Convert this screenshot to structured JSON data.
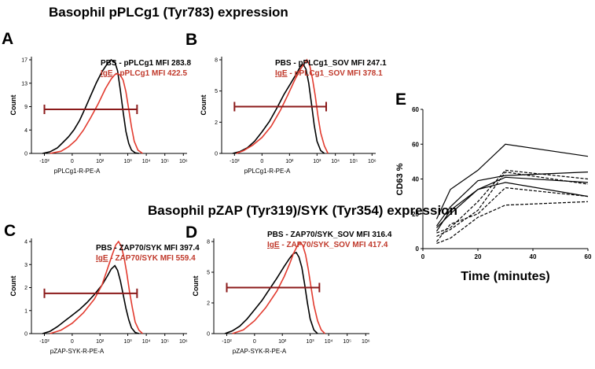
{
  "figure": {
    "section1_title": "Basophil pPLCg1 (Tyr783) expression",
    "section2_title": "Basophil pZAP (Tyr319)/SYK (Tyr354) expression"
  },
  "chart_data": [
    {
      "id": "A",
      "type": "histogram",
      "panel_letter": "A",
      "xlabel": "pPLCg1-R-PE-A",
      "ylabel": "Count",
      "y_ticks": [
        "0",
        "4",
        "9",
        "13",
        "17"
      ],
      "ylim": [
        0,
        17
      ],
      "x_ticks": [
        "-10²",
        "0",
        "10²",
        "10³",
        "10⁴",
        "10⁵",
        "10⁶"
      ],
      "legend": [
        {
          "prefix": "PBS",
          "rest": " - pPLCg1 MFI 283.8",
          "color": "#000000"
        },
        {
          "prefix": "IgE",
          "rest": " - pPLCg1 MFI 422.5",
          "color": "#e23b2f"
        }
      ],
      "series": [
        {
          "name": "PBS",
          "color": "#000000",
          "x": [
            -1.6,
            -1.2,
            -0.8,
            -0.5,
            -0.2,
            0.1,
            0.4,
            0.7,
            1.0,
            1.3,
            1.6,
            1.9,
            2.1,
            2.3,
            2.45,
            2.6,
            2.75,
            2.9,
            3.05,
            3.2,
            3.4,
            3.6
          ],
          "y": [
            0,
            0.3,
            1.0,
            2.0,
            3.0,
            4.3,
            6.0,
            8.2,
            10.5,
            12.8,
            14.8,
            16.3,
            17,
            16.6,
            15.0,
            11.5,
            7.5,
            4.0,
            1.8,
            0.6,
            0.1,
            0
          ]
        },
        {
          "name": "IgE",
          "color": "#e23b2f",
          "x": [
            -1.2,
            -0.6,
            -0.2,
            0.2,
            0.6,
            1.0,
            1.4,
            1.8,
            2.1,
            2.3,
            2.45,
            2.6,
            2.75,
            2.9,
            3.05,
            3.2,
            3.35,
            3.55,
            3.8
          ],
          "y": [
            0,
            0.4,
            1.2,
            2.4,
            4.2,
            6.5,
            9.0,
            11.8,
            13.5,
            14.3,
            14.5,
            14.2,
            13.3,
            11.2,
            8.0,
            4.8,
            2.2,
            0.6,
            0
          ]
        }
      ],
      "gate": {
        "from": -1.5,
        "to": 3.5,
        "y": 8
      }
    },
    {
      "id": "B",
      "type": "histogram",
      "panel_letter": "B",
      "xlabel": "pPLCg1-R-PE-A",
      "ylabel": "Count",
      "y_ticks": [
        "0",
        "2",
        "5",
        "8"
      ],
      "ylim": [
        0,
        10
      ],
      "x_ticks": [
        "-10²",
        "0",
        "10²",
        "10³",
        "10⁴",
        "10⁵",
        "10⁶"
      ],
      "legend": [
        {
          "prefix": "PBS",
          "rest": " - pPLCg1_SOV MFI 247.1",
          "color": "#000000"
        },
        {
          "prefix": "IgE",
          "rest": " - pPLCg1_SOV MFI 378.1",
          "color": "#e23b2f"
        }
      ],
      "series": [
        {
          "name": "PBS",
          "color": "#000000",
          "x": [
            -1.6,
            -1.2,
            -0.8,
            -0.4,
            0,
            0.4,
            0.8,
            1.2,
            1.6,
            1.9,
            2.1,
            2.25,
            2.4,
            2.55,
            2.7,
            2.85,
            3.0,
            3.2,
            3.4
          ],
          "y": [
            0,
            0.2,
            0.6,
            1.3,
            2.3,
            3.4,
            4.8,
            6.3,
            7.6,
            8.6,
            9.3,
            9.5,
            9.0,
            7.5,
            5.3,
            3.0,
            1.3,
            0.3,
            0
          ]
        },
        {
          "name": "IgE",
          "color": "#e23b2f",
          "x": [
            -1.4,
            -1.0,
            -0.5,
            0,
            0.5,
            1.0,
            1.4,
            1.8,
            2.1,
            2.3,
            2.45,
            2.6,
            2.75,
            2.9,
            3.05,
            3.2,
            3.4,
            3.6
          ],
          "y": [
            0,
            0.3,
            0.9,
            1.7,
            2.9,
            4.6,
            6.2,
            7.9,
            9.0,
            9.6,
            10.0,
            9.4,
            8.0,
            6.2,
            4.0,
            2.2,
            0.8,
            0
          ]
        }
      ],
      "gate": {
        "from": -1.5,
        "to": 3.5,
        "y": 5
      }
    },
    {
      "id": "C",
      "type": "histogram",
      "panel_letter": "C",
      "xlabel": "pZAP-SYK-R-PE-A",
      "ylabel": "Count",
      "y_ticks": [
        "0",
        "1",
        "2",
        "3",
        "4"
      ],
      "ylim": [
        0,
        4
      ],
      "x_ticks": [
        "-10²",
        "0",
        "10²",
        "10³",
        "10⁴",
        "10⁵",
        "10⁶"
      ],
      "legend": [
        {
          "prefix": "PBS",
          "rest": " - ZAP70/SYK MFI 397.4",
          "color": "#000000"
        },
        {
          "prefix": "IgE",
          "rest": " - ZAP70/SYK MFI 559.4",
          "color": "#e23b2f"
        }
      ],
      "series": [
        {
          "name": "PBS",
          "color": "#000000",
          "x": [
            -1.6,
            -1.2,
            -0.8,
            -0.4,
            0,
            0.4,
            0.8,
            1.2,
            1.6,
            1.9,
            2.1,
            2.3,
            2.45,
            2.6,
            2.75,
            2.9,
            3.05,
            3.2,
            3.4,
            3.6
          ],
          "y": [
            0,
            0.1,
            0.3,
            0.55,
            0.8,
            1.05,
            1.35,
            1.7,
            2.1,
            2.5,
            2.8,
            2.95,
            2.75,
            2.3,
            1.7,
            1.1,
            0.6,
            0.25,
            0.05,
            0
          ]
        },
        {
          "name": "IgE",
          "color": "#e23b2f",
          "x": [
            -1.2,
            -0.6,
            0,
            0.6,
            1.2,
            1.6,
            1.9,
            2.15,
            2.35,
            2.5,
            2.65,
            2.8,
            2.95,
            3.1,
            3.25,
            3.4,
            3.6,
            3.8
          ],
          "y": [
            0,
            0.15,
            0.45,
            0.9,
            1.5,
            2.1,
            2.8,
            3.4,
            3.85,
            4.0,
            3.8,
            3.3,
            2.6,
            1.8,
            1.1,
            0.5,
            0.15,
            0
          ]
        }
      ],
      "gate": {
        "from": -1.5,
        "to": 3.5,
        "y": 1.75
      }
    },
    {
      "id": "D",
      "type": "histogram",
      "panel_letter": "D",
      "xlabel": "pZAP-SYK-R-PE-A",
      "ylabel": "Count",
      "y_ticks": [
        "0",
        "2",
        "5",
        "8"
      ],
      "ylim": [
        0,
        10
      ],
      "x_ticks": [
        "-10²",
        "0",
        "10²",
        "10³",
        "10⁴",
        "10⁵",
        "10⁶"
      ],
      "legend": [
        {
          "prefix": "PBS",
          "rest": " - ZAP70/SYK_SOV MFI 316.4",
          "color": "#000000"
        },
        {
          "prefix": "IgE",
          "rest": " - ZAP70/SYK_SOV MFI 417.4",
          "color": "#e23b2f"
        }
      ],
      "series": [
        {
          "name": "PBS",
          "color": "#000000",
          "x": [
            -1.6,
            -1.2,
            -0.8,
            -0.4,
            0,
            0.4,
            0.8,
            1.2,
            1.6,
            1.9,
            2.1,
            2.25,
            2.4,
            2.55,
            2.7,
            2.85,
            3.0,
            3.2,
            3.4
          ],
          "y": [
            0,
            0.3,
            0.8,
            1.6,
            2.6,
            3.6,
            4.8,
            6.0,
            7.3,
            8.2,
            8.7,
            8.8,
            8.3,
            7.2,
            5.4,
            3.4,
            1.6,
            0.4,
            0
          ]
        },
        {
          "name": "IgE",
          "color": "#e23b2f",
          "x": [
            -1.2,
            -0.6,
            0,
            0.6,
            1.2,
            1.6,
            1.9,
            2.1,
            2.3,
            2.45,
            2.6,
            2.75,
            2.9,
            3.05,
            3.2,
            3.4,
            3.6,
            3.8
          ],
          "y": [
            0,
            0.4,
            1.4,
            2.8,
            4.6,
            6.2,
            7.6,
            8.7,
            9.5,
            9.9,
            9.6,
            8.6,
            7.0,
            5.0,
            3.1,
            1.4,
            0.4,
            0
          ]
        }
      ],
      "gate": {
        "from": -1.5,
        "to": 3.5,
        "y": 5
      }
    },
    {
      "id": "E",
      "type": "line",
      "panel_letter": "E",
      "xlabel": "Time (minutes)",
      "ylabel": "CD63 %",
      "x_ticks": [
        0,
        20,
        40,
        60
      ],
      "y_ticks": [
        0,
        20,
        40,
        60
      ],
      "y_top_label": "60",
      "xlim": [
        0,
        60
      ],
      "ylim": [
        0,
        80
      ],
      "x": [
        5,
        10,
        20,
        30,
        60
      ],
      "series": [
        {
          "name": "solid-1",
          "style": "solid",
          "values": [
            17,
            34,
            45,
            60,
            53
          ]
        },
        {
          "name": "solid-2",
          "style": "solid",
          "values": [
            13,
            24,
            39,
            42,
            44
          ]
        },
        {
          "name": "solid-3",
          "style": "solid",
          "values": [
            12,
            20,
            34,
            41,
            38
          ]
        },
        {
          "name": "solid-4",
          "style": "solid",
          "values": [
            10,
            22,
            34,
            38,
            30
          ]
        },
        {
          "name": "dashed-1",
          "style": "dashed",
          "values": [
            9,
            12,
            27,
            45,
            40
          ]
        },
        {
          "name": "dashed-2",
          "style": "dashed",
          "values": [
            7,
            11,
            22,
            44,
            37
          ]
        },
        {
          "name": "dashed-3",
          "style": "dashed",
          "values": [
            4,
            14,
            20,
            35,
            30
          ]
        },
        {
          "name": "dashed-4",
          "style": "dashed",
          "values": [
            3,
            6,
            18,
            25,
            27
          ]
        }
      ]
    }
  ]
}
